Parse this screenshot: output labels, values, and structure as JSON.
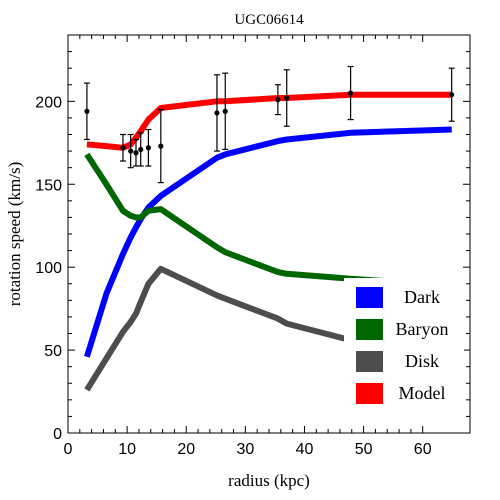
{
  "chart_data": {
    "type": "line",
    "title": "UGC06614",
    "xlabel": "radius (kpc)",
    "ylabel": "rotation speed (km/s)",
    "xlim": [
      0,
      68
    ],
    "ylim": [
      0,
      240
    ],
    "xticks": [
      0,
      10,
      20,
      30,
      40,
      50,
      60
    ],
    "yticks": [
      0,
      50,
      100,
      150,
      200
    ],
    "grid": false,
    "legend_position": "bottom-right",
    "series": [
      {
        "name": "Dark",
        "color": "#0000ff",
        "x": [
          3.2,
          6.5,
          9.3,
          10.6,
          11.5,
          12.3,
          13.6,
          15.7,
          25.2,
          26.6,
          35.5,
          37.0,
          47.8,
          64.9
        ],
        "y": [
          46,
          84,
          108,
          118,
          124,
          129,
          136,
          143,
          166,
          168,
          176,
          177,
          181,
          183
        ]
      },
      {
        "name": "Baryon",
        "color": "#006600",
        "x": [
          3.2,
          6.5,
          9.3,
          10.6,
          11.5,
          12.3,
          13.6,
          15.7,
          25.2,
          26.6,
          35.5,
          37.0,
          47.8,
          64.9
        ],
        "y": [
          168,
          150,
          134,
          131,
          130,
          130,
          134,
          135,
          112,
          109,
          97,
          96,
          93,
          89
        ]
      },
      {
        "name": "Disk",
        "color": "#4d4d4d",
        "x": [
          3.2,
          6.5,
          9.3,
          10.6,
          11.5,
          12.3,
          13.6,
          15.7,
          25.2,
          26.6,
          35.5,
          37.0,
          47.8,
          64.9
        ],
        "y": [
          26,
          45,
          61,
          67,
          72,
          79,
          90,
          99,
          83,
          81,
          69,
          66,
          56,
          47
        ]
      },
      {
        "name": "Model",
        "color": "#ff0000",
        "x": [
          3.2,
          6.5,
          9.3,
          10.6,
          11.5,
          12.3,
          13.6,
          15.7,
          25.2,
          26.6,
          35.5,
          37.0,
          47.8,
          64.9
        ],
        "y": [
          174,
          173,
          172,
          174,
          178,
          182,
          189,
          196,
          200,
          200,
          202,
          202,
          204,
          204
        ]
      }
    ],
    "observed": {
      "x": [
        3.2,
        9.3,
        10.6,
        11.5,
        12.3,
        13.6,
        15.7,
        25.2,
        26.6,
        35.5,
        37.0,
        47.8,
        64.9
      ],
      "y": [
        194,
        172,
        170,
        169,
        171,
        172,
        173,
        193,
        194,
        201,
        202,
        205,
        204
      ],
      "err": [
        17,
        8,
        10,
        8,
        10,
        11,
        22,
        23,
        23,
        9,
        17,
        16,
        16
      ]
    }
  }
}
